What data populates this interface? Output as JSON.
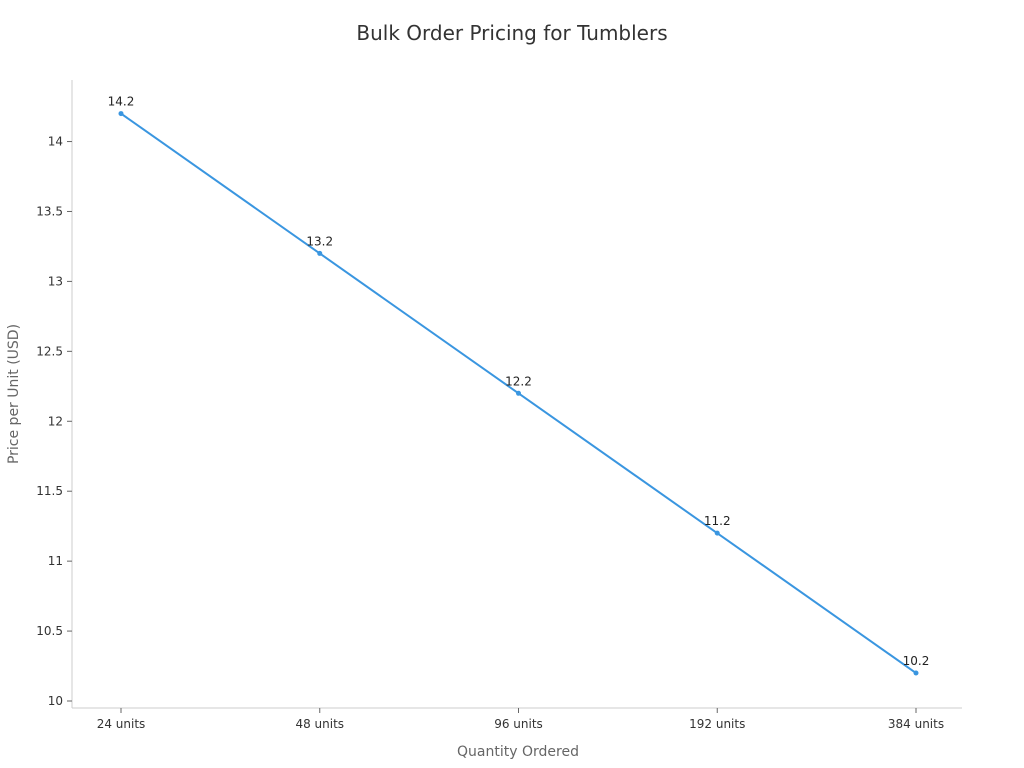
{
  "chart_data": {
    "type": "line",
    "title": "Bulk Order Pricing for Tumblers",
    "xlabel": "Quantity Ordered",
    "ylabel": "Price per Unit (USD)",
    "categories": [
      "24 units",
      "48 units",
      "96 units",
      "192 units",
      "384 units"
    ],
    "values": [
      14.2,
      13.2,
      12.2,
      11.2,
      10.2
    ],
    "data_labels": [
      "14.2",
      "13.2",
      "12.2",
      "11.2",
      "10.2"
    ],
    "ylim": [
      9.95,
      14.44
    ],
    "yticks": [
      10,
      10.5,
      11,
      11.5,
      12,
      12.5,
      13,
      13.5,
      14
    ],
    "ytick_labels": [
      "10",
      "10.5",
      "11",
      "11.5",
      "12",
      "12.5",
      "13",
      "13.5",
      "14"
    ],
    "grid": false,
    "line_color": "#3a96e0",
    "axis_color": "#cccccc"
  }
}
